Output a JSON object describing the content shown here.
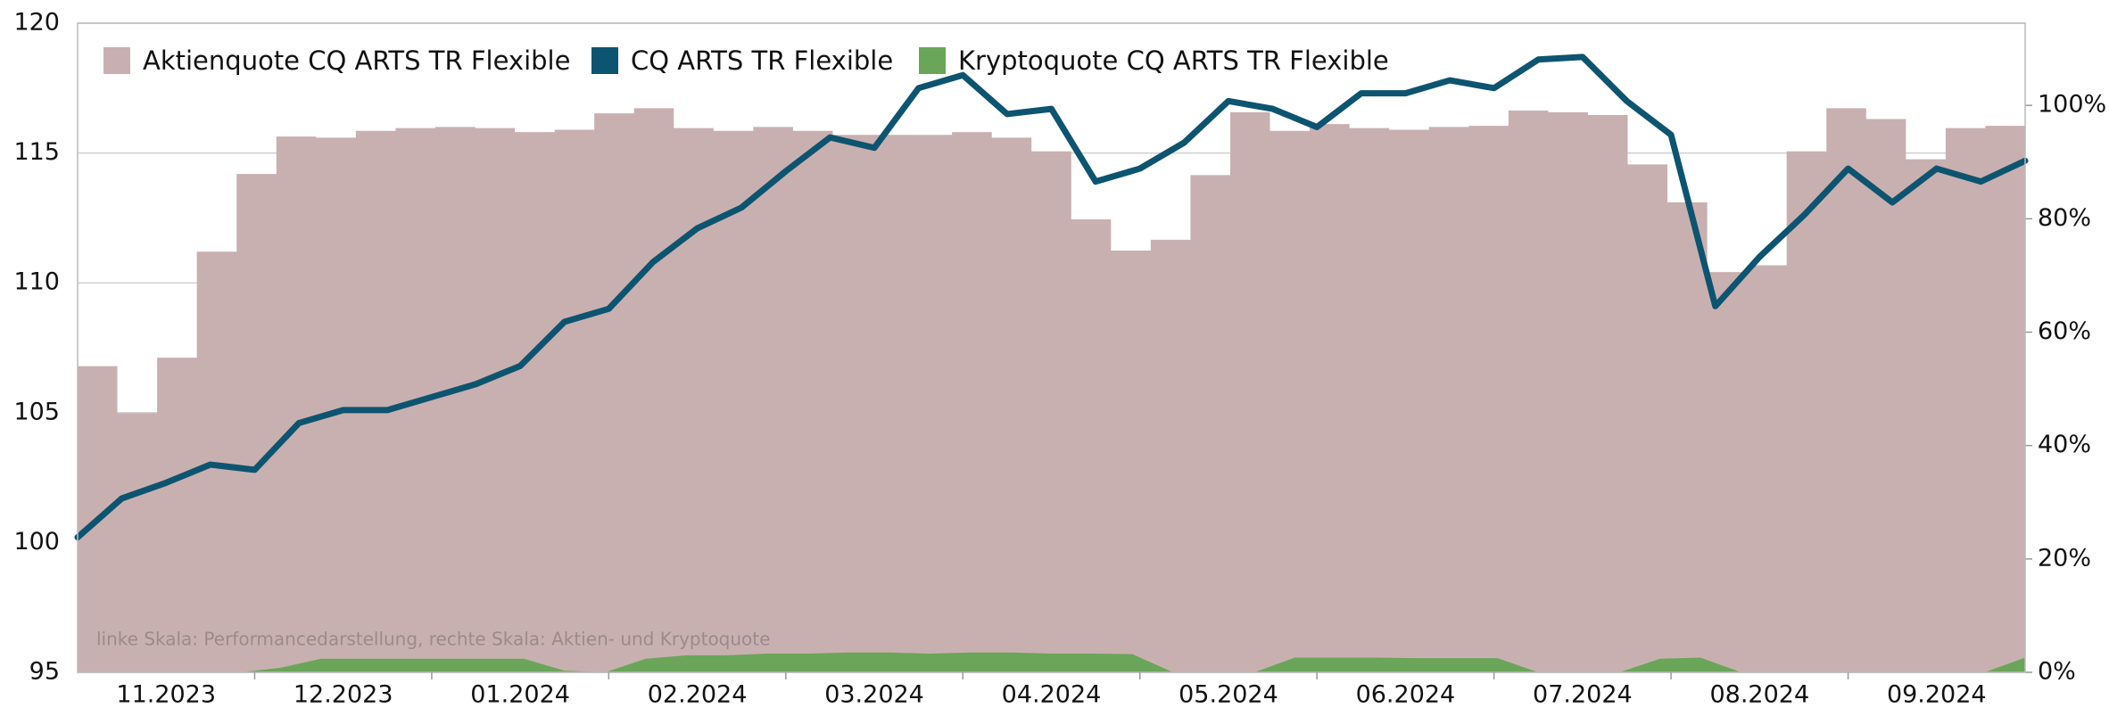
{
  "chart_data": {
    "type": "combo",
    "note": "linke Skala: Performancedarstellung, rechte Skala: Aktien- und Kryptoquote",
    "x_labels": [
      "11.2023",
      "12.2023",
      "01.2024",
      "02.2024",
      "03.2024",
      "04.2024",
      "05.2024",
      "06.2024",
      "07.2024",
      "08.2024",
      "09.2024"
    ],
    "ylim": [
      95,
      120
    ],
    "yticks": [
      95,
      100,
      105,
      110,
      115,
      120
    ],
    "y2lim": [
      0,
      114.5
    ],
    "y2ticks": [
      {
        "value": 0,
        "label": "0%"
      },
      {
        "value": 20,
        "label": "20%"
      },
      {
        "value": 40,
        "label": "40%"
      },
      {
        "value": 60,
        "label": "60%"
      },
      {
        "value": 80,
        "label": "80%"
      },
      {
        "value": 100,
        "label": "100%"
      }
    ],
    "grid": true,
    "legend": "top-left",
    "series": [
      {
        "name": "Aktienquote CQ ARTS TR Flexible",
        "type": "area",
        "step": true,
        "axis": "y2",
        "color": "#c9b0b0",
        "values": [
          54,
          45.7,
          55.5,
          74.2,
          87.9,
          94.5,
          94.3,
          95.5,
          96,
          96.2,
          96,
          95.3,
          95.7,
          98.6,
          99.5,
          96,
          95.5,
          96.2,
          95.5,
          94.8,
          94.8,
          94.8,
          95.3,
          94.3,
          91.9,
          79.9,
          74.4,
          76.3,
          87.7,
          98.8,
          95.5,
          96.7,
          96,
          95.7,
          96.2,
          96.4,
          99.1,
          98.8,
          98.3,
          89.6,
          82.9,
          70.6,
          71.8,
          91.9,
          99.5,
          97.6,
          90.5,
          96,
          96.4
        ]
      },
      {
        "name": "CQ ARTS TR Flexible",
        "type": "line",
        "axis": "y",
        "color": "#0d5470",
        "values": [
          100.2,
          101.7,
          102.3,
          103.0,
          102.8,
          104.6,
          105.1,
          105.1,
          105.6,
          106.1,
          106.8,
          108.5,
          109.0,
          110.8,
          112.1,
          112.9,
          114.3,
          115.6,
          115.2,
          117.5,
          118.0,
          116.5,
          116.7,
          113.9,
          114.4,
          115.4,
          117.0,
          116.7,
          116.0,
          117.3,
          117.3,
          117.8,
          117.5,
          118.6,
          118.7,
          117.0,
          115.7,
          109.1,
          111.0,
          112.6,
          114.4,
          113.1,
          114.4,
          113.9,
          114.7
        ]
      },
      {
        "name": "Kryptoquote CQ ARTS TR Flexible",
        "type": "area",
        "axis": "y2",
        "color": "#6aa55a",
        "values": [
          0,
          0,
          0,
          0,
          0,
          0.8,
          2.4,
          2.4,
          2.4,
          2.4,
          2.4,
          2.4,
          0.3,
          0,
          2.4,
          3,
          3,
          3.3,
          3.3,
          3.5,
          3.5,
          3.3,
          3.5,
          3.5,
          3.3,
          3.3,
          3.2,
          0,
          0,
          0,
          2.6,
          2.6,
          2.6,
          2.5,
          2.5,
          2.5,
          0,
          0,
          0,
          2.4,
          2.6,
          0,
          0,
          0,
          0,
          0,
          0,
          0,
          2.6
        ]
      }
    ]
  }
}
